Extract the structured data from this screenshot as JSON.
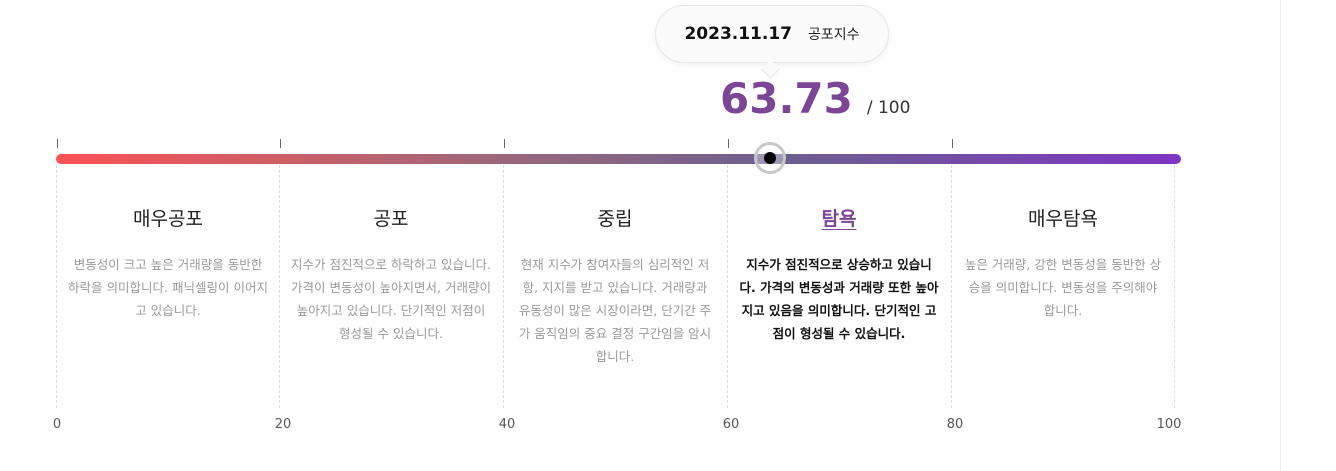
{
  "tooltip": {
    "date": "2023.11.17",
    "label": "공포지수"
  },
  "score": {
    "value": "63.73",
    "max_label": "/ 100",
    "value_numeric": 63.73
  },
  "colors": {
    "accent": "#7d4595",
    "gradient_start": "#fb5257",
    "gradient_end": "#7e35c4"
  },
  "zones": [
    {
      "title": "매우공포",
      "desc": "변동성이 크고 높은 거래량을 동반한 하락을 의미합니다. 패닉셀링이 이어지고 있습니다.",
      "active": false
    },
    {
      "title": "공포",
      "desc": "지수가 점진적으로 하락하고 있습니다. 가격이 변동성이 높아지면서, 거래량이 높아지고 있습니다. 단기적인 저점이 형성될 수 있습니다.",
      "active": false
    },
    {
      "title": "중립",
      "desc": "현재 지수가 참여자들의 심리적인 저항, 지지를 받고 있습니다. 거래량과 유동성이 많은 시장이라면, 단기간 주가 움직임의 중요 결정 구간임을 암시합니다.",
      "active": false
    },
    {
      "title": "탐욕",
      "desc": "지수가 점진적으로 상승하고 있습니다. 가격의 변동성과 거래량 또한 높아지고 있음을 의미합니다. 단기적인 고점이 형성될 수 있습니다.",
      "active": true
    },
    {
      "title": "매우탐욕",
      "desc": "높은 거래량, 강한 변동성을 동반한 상승을 의미합니다. 변동성을 주의해야 합니다.",
      "active": false
    }
  ],
  "axis": [
    "0",
    "20",
    "40",
    "60",
    "80",
    "100"
  ]
}
